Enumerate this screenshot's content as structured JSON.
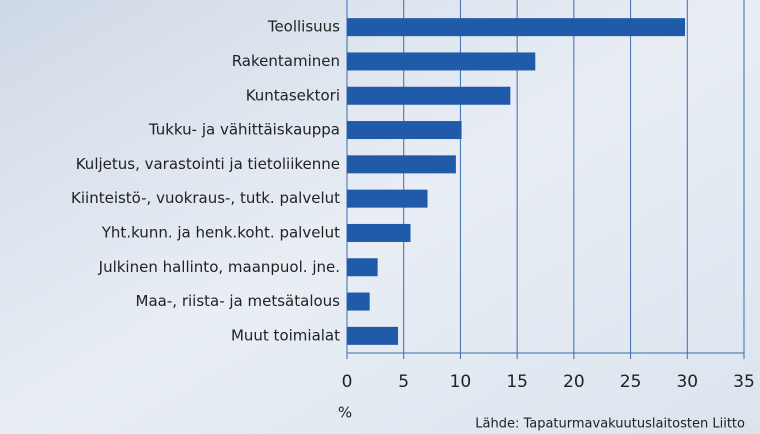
{
  "chart_data": {
    "type": "bar",
    "orientation": "horizontal",
    "categories": [
      "Teollisuus",
      "Rakentaminen",
      "Kuntasektori",
      "Tukku- ja vähittäiskauppa",
      "Kuljetus, varastointi ja tietoliikenne",
      "Kiinteistö-, vuokraus-, tutk. palvelut",
      "Yht.kunn. ja henk.koht. palvelut",
      "Julkinen hallinto, maanpuol. jne.",
      "Maa-, riista- ja metsätalous",
      "Muut toimialat"
    ],
    "values": [
      29.8,
      16.6,
      14.4,
      10.1,
      9.6,
      7.1,
      5.6,
      2.7,
      2.0,
      4.5
    ],
    "color": "#1f5ba8",
    "xlim": [
      0,
      35
    ],
    "xticks": [
      0,
      5,
      10,
      15,
      20,
      25,
      30,
      35
    ],
    "x_label": "%",
    "grid": true,
    "source": "Lähde: Tapaturmavakuutuslaitosten Liitto"
  }
}
